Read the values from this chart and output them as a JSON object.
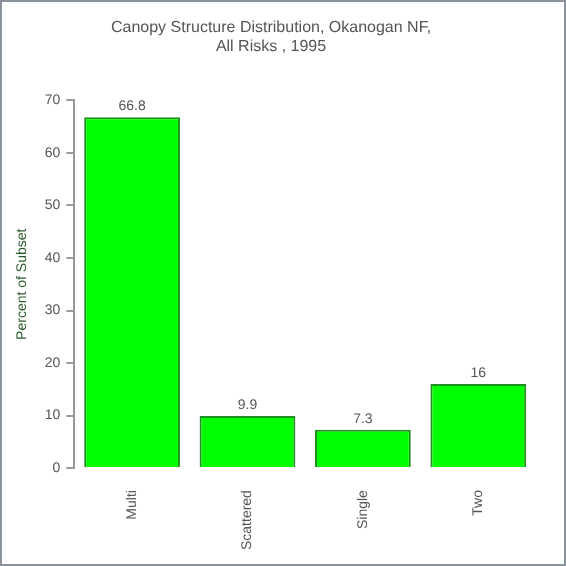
{
  "chart_data": {
    "type": "bar",
    "title": "Canopy Structure Distribution, Okanogan NF,",
    "subtitle": "All Risks , 1995",
    "ylabel": "Percent of Subset",
    "categories": [
      "Multi",
      "Scattered",
      "Single",
      "Two"
    ],
    "values": [
      66.8,
      9.9,
      7.3,
      16
    ],
    "color": "#00ff00",
    "ylim": [
      0,
      70
    ],
    "yticks": [
      0,
      10,
      20,
      30,
      40,
      50,
      60,
      70
    ],
    "grid": false,
    "legend": false,
    "data_labels": true
  }
}
